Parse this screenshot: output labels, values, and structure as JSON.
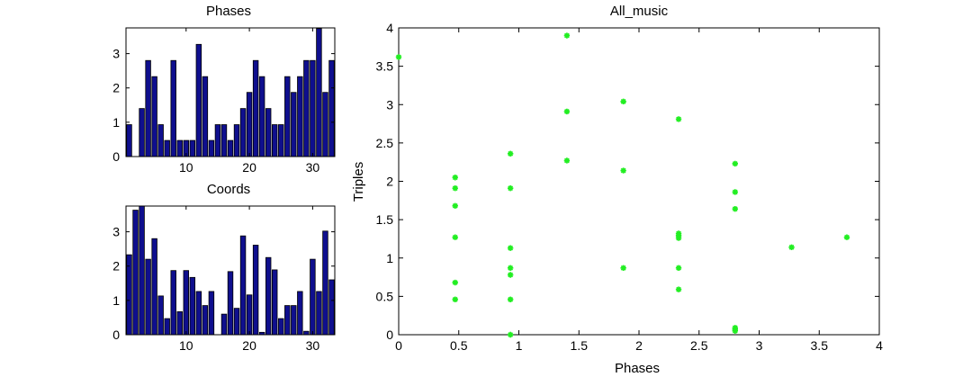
{
  "colors": {
    "bar_fill": "#0f0f8e",
    "bar_edge": "#000000",
    "marker": "#22ee22",
    "axes": "#000000"
  },
  "chart_data": [
    {
      "type": "bar",
      "title": "Phases",
      "xlabel": "",
      "ylabel": "",
      "xlim": [
        0.5,
        33.5
      ],
      "ylim": [
        0,
        3.75
      ],
      "xticks": [
        10,
        20,
        30
      ],
      "yticks": [
        0,
        1,
        2,
        3
      ],
      "x": [
        1,
        2,
        3,
        4,
        5,
        6,
        7,
        8,
        9,
        10,
        11,
        12,
        13,
        14,
        15,
        16,
        17,
        18,
        19,
        20,
        21,
        22,
        23,
        24,
        25,
        26,
        27,
        28,
        29,
        30,
        31,
        32,
        33
      ],
      "values": [
        0.93,
        0,
        1.4,
        2.8,
        2.33,
        0.93,
        0.47,
        2.8,
        0.47,
        0.47,
        0.47,
        3.27,
        2.33,
        0.47,
        0.93,
        0.93,
        0.47,
        0.93,
        1.4,
        1.87,
        2.8,
        2.33,
        1.4,
        0.93,
        0.93,
        2.33,
        1.87,
        2.33,
        2.8,
        2.8,
        3.73,
        1.87,
        2.8
      ]
    },
    {
      "type": "bar",
      "title": "Coords",
      "xlabel": "",
      "ylabel": "",
      "xlim": [
        0.5,
        33.5
      ],
      "ylim": [
        0,
        3.75
      ],
      "xticks": [
        10,
        20,
        30
      ],
      "yticks": [
        0,
        1,
        2,
        3
      ],
      "x": [
        1,
        2,
        3,
        4,
        5,
        6,
        7,
        8,
        9,
        10,
        11,
        12,
        13,
        14,
        15,
        16,
        17,
        18,
        19,
        20,
        21,
        22,
        23,
        24,
        25,
        26,
        27,
        28,
        29,
        30,
        31,
        32,
        33
      ],
      "values": [
        2.33,
        3.63,
        3.85,
        2.2,
        2.8,
        1.13,
        0.47,
        1.87,
        0.67,
        1.87,
        1.67,
        1.26,
        0.85,
        1.26,
        0,
        0.6,
        1.84,
        0.77,
        2.88,
        1.16,
        2.61,
        0.07,
        2.25,
        1.89,
        0.47,
        0.85,
        0.85,
        1.26,
        0.1,
        2.2,
        1.26,
        3.02,
        1.6
      ]
    },
    {
      "type": "scatter",
      "title": "All_music",
      "xlabel": "Phases",
      "ylabel": "Triples",
      "xlim": [
        0,
        4
      ],
      "ylim": [
        0,
        4
      ],
      "xticks": [
        0,
        0.5,
        1,
        1.5,
        2,
        2.5,
        3,
        3.5,
        4
      ],
      "yticks": [
        0,
        0.5,
        1,
        1.5,
        2,
        2.5,
        3,
        3.5,
        4
      ],
      "tick_labels_x": [
        "0",
        "0.5",
        "1",
        "1.5",
        "2",
        "2.5",
        "3",
        "3.5",
        "4"
      ],
      "tick_labels_y": [
        "0",
        "0.5",
        "1",
        "1.5",
        "2",
        "2.5",
        "3",
        "3.5",
        "4"
      ],
      "points": [
        [
          0,
          3.62
        ],
        [
          0.47,
          2.05
        ],
        [
          0.47,
          1.91
        ],
        [
          0.47,
          1.68
        ],
        [
          0.47,
          1.27
        ],
        [
          0.47,
          0.68
        ],
        [
          0.47,
          0.46
        ],
        [
          0.93,
          2.36
        ],
        [
          0.93,
          1.91
        ],
        [
          0.93,
          1.13
        ],
        [
          0.93,
          0.87
        ],
        [
          0.93,
          0.78
        ],
        [
          0.93,
          0.46
        ],
        [
          0.93,
          0.0
        ],
        [
          1.4,
          3.9
        ],
        [
          1.4,
          2.91
        ],
        [
          1.4,
          2.27
        ],
        [
          1.87,
          3.04
        ],
        [
          1.87,
          2.14
        ],
        [
          1.87,
          0.87
        ],
        [
          2.33,
          2.81
        ],
        [
          2.33,
          1.32
        ],
        [
          2.33,
          1.29
        ],
        [
          2.33,
          1.26
        ],
        [
          2.33,
          0.87
        ],
        [
          2.33,
          0.59
        ],
        [
          2.8,
          2.23
        ],
        [
          2.8,
          1.86
        ],
        [
          2.8,
          1.64
        ],
        [
          2.8,
          0.09
        ],
        [
          2.8,
          0.07
        ],
        [
          2.8,
          0.05
        ],
        [
          3.27,
          1.14
        ],
        [
          3.73,
          1.27
        ]
      ]
    }
  ]
}
